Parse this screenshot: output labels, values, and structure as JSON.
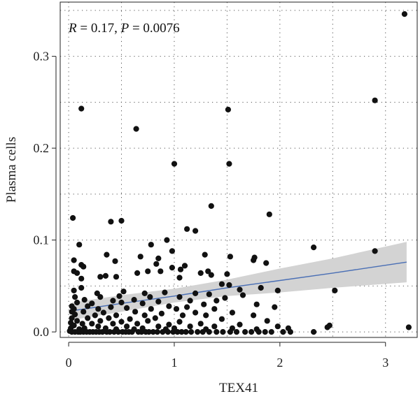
{
  "chart_data": {
    "type": "scatter",
    "xlabel": "TEX41",
    "ylabel": "Plasma cells",
    "xlim": [
      -0.08,
      3.3
    ],
    "ylim": [
      -0.006,
      0.359
    ],
    "xticks": [
      0,
      1,
      2,
      3
    ],
    "xtick_labels": [
      "0",
      "1",
      "2",
      "3"
    ],
    "yticks": [
      0.0,
      0.1,
      0.2,
      0.3
    ],
    "ytick_labels": [
      "0.0",
      "0.1",
      "0.2",
      "0.3"
    ],
    "grid": true,
    "grid_style": "dotted",
    "point_color": "#111111",
    "fit_color": "#4a6fb5",
    "ci_color": "#d3d3d3",
    "annotation": {
      "r_label": "R",
      "r_text": " = 0.17, ",
      "p_label": "P",
      "p_text": " = 0.0076"
    },
    "regression": {
      "x": [
        0.03,
        0.5,
        1.0,
        1.5,
        2.0,
        2.5,
        3.2
      ],
      "fit": [
        0.023,
        0.031,
        0.039,
        0.048,
        0.056,
        0.064,
        0.076
      ],
      "lower": [
        0.013,
        0.022,
        0.032,
        0.039,
        0.043,
        0.048,
        0.054
      ],
      "upper": [
        0.032,
        0.04,
        0.047,
        0.057,
        0.069,
        0.08,
        0.098
      ]
    },
    "points": [
      [
        3.18,
        0.346
      ],
      [
        2.9,
        0.252
      ],
      [
        0.12,
        0.243
      ],
      [
        1.51,
        0.242
      ],
      [
        0.64,
        0.221
      ],
      [
        1.0,
        0.183
      ],
      [
        1.52,
        0.183
      ],
      [
        1.35,
        0.137
      ],
      [
        1.9,
        0.128
      ],
      [
        0.04,
        0.124
      ],
      [
        0.4,
        0.12
      ],
      [
        0.5,
        0.121
      ],
      [
        1.12,
        0.112
      ],
      [
        1.2,
        0.11
      ],
      [
        0.93,
        0.1
      ],
      [
        0.1,
        0.095
      ],
      [
        0.78,
        0.095
      ],
      [
        2.32,
        0.092
      ],
      [
        2.9,
        0.088
      ],
      [
        0.98,
        0.088
      ],
      [
        1.29,
        0.084
      ],
      [
        0.36,
        0.084
      ],
      [
        1.53,
        0.082
      ],
      [
        1.76,
        0.081
      ],
      [
        0.68,
        0.082
      ],
      [
        0.85,
        0.08
      ],
      [
        1.75,
        0.078
      ],
      [
        0.05,
        0.078
      ],
      [
        0.44,
        0.077
      ],
      [
        1.87,
        0.075
      ],
      [
        0.83,
        0.074
      ],
      [
        0.12,
        0.073
      ],
      [
        0.14,
        0.071
      ],
      [
        1.1,
        0.072
      ],
      [
        0.98,
        0.07
      ],
      [
        1.06,
        0.068
      ],
      [
        0.87,
        0.066
      ],
      [
        0.05,
        0.066
      ],
      [
        0.75,
        0.066
      ],
      [
        1.32,
        0.066
      ],
      [
        0.08,
        0.064
      ],
      [
        1.25,
        0.064
      ],
      [
        0.65,
        0.064
      ],
      [
        1.35,
        0.062
      ],
      [
        1.5,
        0.063
      ],
      [
        0.35,
        0.061
      ],
      [
        0.45,
        0.06
      ],
      [
        0.3,
        0.06
      ],
      [
        0.12,
        0.058
      ],
      [
        1.05,
        0.059
      ],
      [
        1.45,
        0.052
      ],
      [
        1.52,
        0.051
      ],
      [
        1.82,
        0.048
      ],
      [
        1.62,
        0.046
      ],
      [
        1.98,
        0.045
      ],
      [
        2.52,
        0.045
      ],
      [
        0.05,
        0.045
      ],
      [
        0.12,
        0.048
      ],
      [
        0.27,
        0.042
      ],
      [
        0.52,
        0.044
      ],
      [
        0.72,
        0.042
      ],
      [
        0.91,
        0.043
      ],
      [
        1.2,
        0.042
      ],
      [
        1.33,
        0.041
      ],
      [
        1.65,
        0.04
      ],
      [
        0.06,
        0.038
      ],
      [
        0.3,
        0.038
      ],
      [
        0.48,
        0.039
      ],
      [
        0.77,
        0.038
      ],
      [
        1.05,
        0.038
      ],
      [
        1.48,
        0.037
      ],
      [
        0.15,
        0.035
      ],
      [
        0.42,
        0.034
      ],
      [
        0.62,
        0.035
      ],
      [
        0.85,
        0.033
      ],
      [
        1.15,
        0.034
      ],
      [
        1.4,
        0.034
      ],
      [
        0.08,
        0.032
      ],
      [
        0.22,
        0.031
      ],
      [
        0.5,
        0.032
      ],
      [
        0.7,
        0.031
      ],
      [
        1.28,
        0.03
      ],
      [
        1.78,
        0.03
      ],
      [
        0.03,
        0.028
      ],
      [
        0.18,
        0.028
      ],
      [
        0.4,
        0.027
      ],
      [
        0.95,
        0.028
      ],
      [
        1.12,
        0.027
      ],
      [
        1.95,
        0.027
      ],
      [
        0.05,
        0.025
      ],
      [
        0.28,
        0.025
      ],
      [
        0.55,
        0.026
      ],
      [
        0.78,
        0.025
      ],
      [
        1.02,
        0.025
      ],
      [
        1.38,
        0.025
      ],
      [
        0.03,
        0.022
      ],
      [
        0.14,
        0.022
      ],
      [
        0.33,
        0.021
      ],
      [
        0.63,
        0.022
      ],
      [
        0.88,
        0.02
      ],
      [
        1.2,
        0.021
      ],
      [
        1.55,
        0.021
      ],
      [
        0.06,
        0.019
      ],
      [
        0.25,
        0.018
      ],
      [
        0.45,
        0.018
      ],
      [
        0.72,
        0.018
      ],
      [
        1.08,
        0.018
      ],
      [
        1.3,
        0.018
      ],
      [
        1.75,
        0.018
      ],
      [
        0.03,
        0.015
      ],
      [
        0.18,
        0.015
      ],
      [
        0.38,
        0.015
      ],
      [
        0.58,
        0.014
      ],
      [
        0.82,
        0.015
      ],
      [
        1.45,
        0.014
      ],
      [
        0.08,
        0.012
      ],
      [
        0.3,
        0.012
      ],
      [
        0.5,
        0.011
      ],
      [
        0.75,
        0.012
      ],
      [
        1.05,
        0.011
      ],
      [
        1.88,
        0.012
      ],
      [
        0.02,
        0.01
      ],
      [
        0.13,
        0.009
      ],
      [
        0.22,
        0.009
      ],
      [
        0.42,
        0.009
      ],
      [
        0.65,
        0.009
      ],
      [
        0.95,
        0.008
      ],
      [
        1.25,
        0.009
      ],
      [
        1.62,
        0.008
      ],
      [
        2.47,
        0.007
      ],
      [
        0.05,
        0.007
      ],
      [
        0.28,
        0.006
      ],
      [
        0.55,
        0.006
      ],
      [
        0.85,
        0.006
      ],
      [
        1.15,
        0.006
      ],
      [
        1.38,
        0.006
      ],
      [
        1.98,
        0.006
      ],
      [
        2.45,
        0.005
      ],
      [
        3.22,
        0.005
      ],
      [
        0.02,
        0.004
      ],
      [
        0.15,
        0.004
      ],
      [
        0.35,
        0.004
      ],
      [
        0.7,
        0.004
      ],
      [
        1.0,
        0.004
      ],
      [
        1.55,
        0.004
      ],
      [
        2.08,
        0.004
      ],
      [
        0.1,
        0.003
      ],
      [
        0.45,
        0.003
      ],
      [
        0.62,
        0.003
      ],
      [
        0.92,
        0.003
      ],
      [
        1.3,
        0.003
      ],
      [
        1.78,
        0.003
      ],
      [
        0.01,
        0.001
      ],
      [
        0.03,
        0.0
      ],
      [
        0.06,
        0.0
      ],
      [
        0.09,
        0.0
      ],
      [
        0.11,
        0.0
      ],
      [
        0.14,
        0.0
      ],
      [
        0.17,
        0.0
      ],
      [
        0.2,
        0.0
      ],
      [
        0.23,
        0.0
      ],
      [
        0.26,
        0.0
      ],
      [
        0.29,
        0.0
      ],
      [
        0.32,
        0.0
      ],
      [
        0.36,
        0.0
      ],
      [
        0.39,
        0.0
      ],
      [
        0.43,
        0.0
      ],
      [
        0.47,
        0.0
      ],
      [
        0.51,
        0.0
      ],
      [
        0.54,
        0.0
      ],
      [
        0.57,
        0.0
      ],
      [
        0.6,
        0.0
      ],
      [
        0.66,
        0.0
      ],
      [
        0.69,
        0.0
      ],
      [
        0.73,
        0.0
      ],
      [
        0.76,
        0.0
      ],
      [
        0.8,
        0.0
      ],
      [
        0.84,
        0.0
      ],
      [
        0.89,
        0.0
      ],
      [
        0.94,
        0.0
      ],
      [
        0.99,
        0.0
      ],
      [
        1.03,
        0.0
      ],
      [
        1.07,
        0.0
      ],
      [
        1.11,
        0.0
      ],
      [
        1.16,
        0.0
      ],
      [
        1.22,
        0.0
      ],
      [
        1.27,
        0.0
      ],
      [
        1.33,
        0.0
      ],
      [
        1.4,
        0.0
      ],
      [
        1.46,
        0.0
      ],
      [
        1.53,
        0.0
      ],
      [
        1.59,
        0.0
      ],
      [
        1.67,
        0.0
      ],
      [
        1.73,
        0.0
      ],
      [
        1.8,
        0.0
      ],
      [
        1.86,
        0.0
      ],
      [
        1.92,
        0.0
      ],
      [
        2.03,
        0.0
      ],
      [
        2.1,
        0.0
      ],
      [
        2.32,
        0.0
      ]
    ]
  }
}
